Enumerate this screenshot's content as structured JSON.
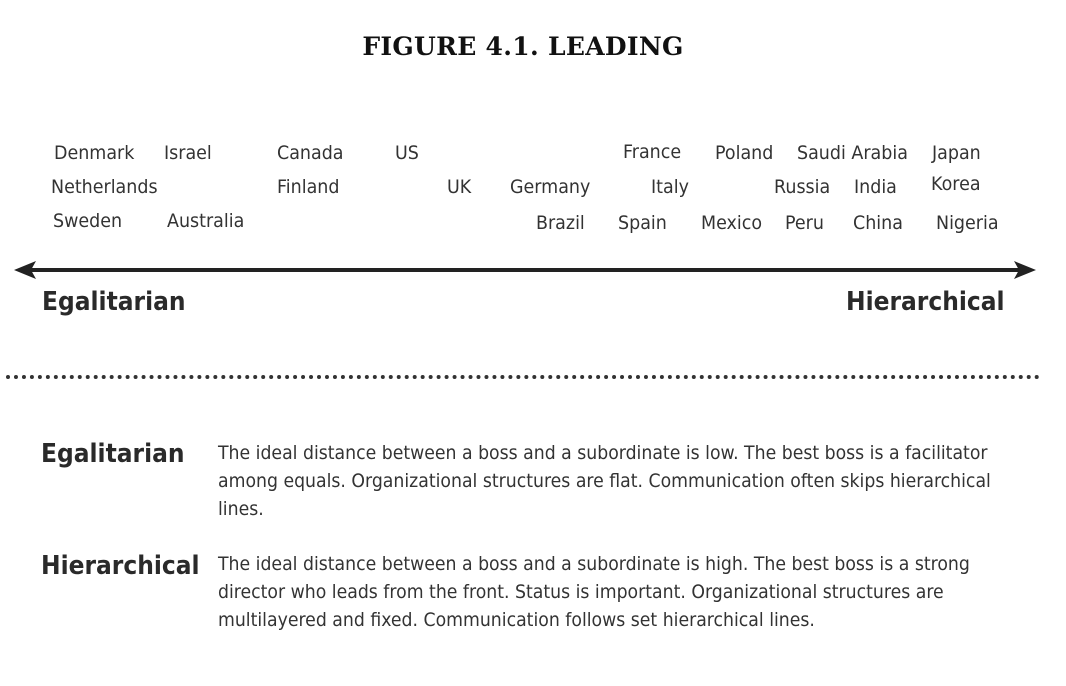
{
  "title": "FIGURE 4.1. LEADING",
  "countries": {
    "denmark": "Denmark",
    "israel": "Israel",
    "canada": "Canada",
    "us": "US",
    "france": "France",
    "poland": "Poland",
    "saudi_arabia": "Saudi Arabia",
    "japan": "Japan",
    "netherlands": "Netherlands",
    "finland": "Finland",
    "uk": "UK",
    "germany": "Germany",
    "italy": "Italy",
    "russia": "Russia",
    "india": "India",
    "korea": "Korea",
    "sweden": "Sweden",
    "australia": "Australia",
    "brazil": "Brazil",
    "spain": "Spain",
    "mexico": "Mexico",
    "peru": "Peru",
    "china": "China",
    "nigeria": "Nigeria"
  },
  "scale": {
    "left_label": "Egalitarian",
    "right_label": "Hierarchical"
  },
  "definitions": {
    "egalitarian": {
      "term": "Egalitarian",
      "text": "The ideal distance between a boss and a subordinate is low. The best boss is a facilitator among equals. Organizational structures are flat. Communication often skips hierarchical lines."
    },
    "hierarchical": {
      "term": "Hierarchical",
      "text": "The ideal distance between a boss and a subordinate is high. The best boss is a strong director who leads from the front. Status is important. Organizational structures are multilayered and fixed. Communication follows set hierarchical lines."
    }
  }
}
